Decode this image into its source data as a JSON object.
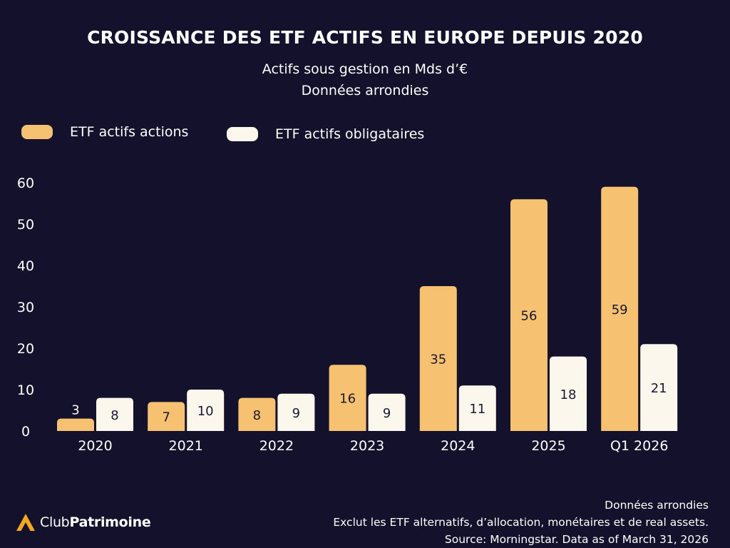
{
  "colors": {
    "background": "#13112b",
    "equity": "#f6c171",
    "bond": "#fcf7ed",
    "text": "#ffffff",
    "bar_label": "#1a1830",
    "logo_orange": "#f5a623"
  },
  "chart_data": {
    "type": "bar",
    "title": "CROISSANCE DES ETF ACTIFS EN EUROPE DEPUIS 2020",
    "subtitle_lines": [
      "Actifs sous gestion en Mds d’€",
      "Données arrondies"
    ],
    "categories": [
      "2020",
      "2021",
      "2022",
      "2023",
      "2024",
      "2025",
      "Q1 2026"
    ],
    "series": [
      {
        "name": "ETF actifs actions",
        "values": [
          3,
          7,
          8,
          16,
          35,
          56,
          59
        ],
        "labels": [
          "3",
          "7",
          "8",
          "16",
          "35",
          "56",
          "59"
        ]
      },
      {
        "name": "ETF actifs obligataires",
        "values": [
          8,
          10,
          9,
          9,
          11,
          18,
          21
        ],
        "labels": [
          "8",
          "10",
          "9",
          "9",
          "11",
          "18",
          "21"
        ]
      }
    ],
    "ylim": [
      0,
      60
    ],
    "yticks": [
      0,
      10,
      20,
      30,
      40,
      50,
      60
    ],
    "ytick_labels": [
      "0",
      "10",
      "20",
      "30",
      "40",
      "50",
      "60"
    ],
    "xlabel": "",
    "ylabel": "",
    "grid": false,
    "legend_position": "top-left"
  },
  "footer": {
    "notes": [
      "Données arrondies",
      "Exclut les ETF alternatifs, d’allocation, monétaires et de real assets.",
      "Source: Morningstar. Data as of March 31, 2026"
    ],
    "logo_icon": "triangle-logo-icon",
    "logo_part1": "Club",
    "logo_part2": "Patrimoine"
  }
}
